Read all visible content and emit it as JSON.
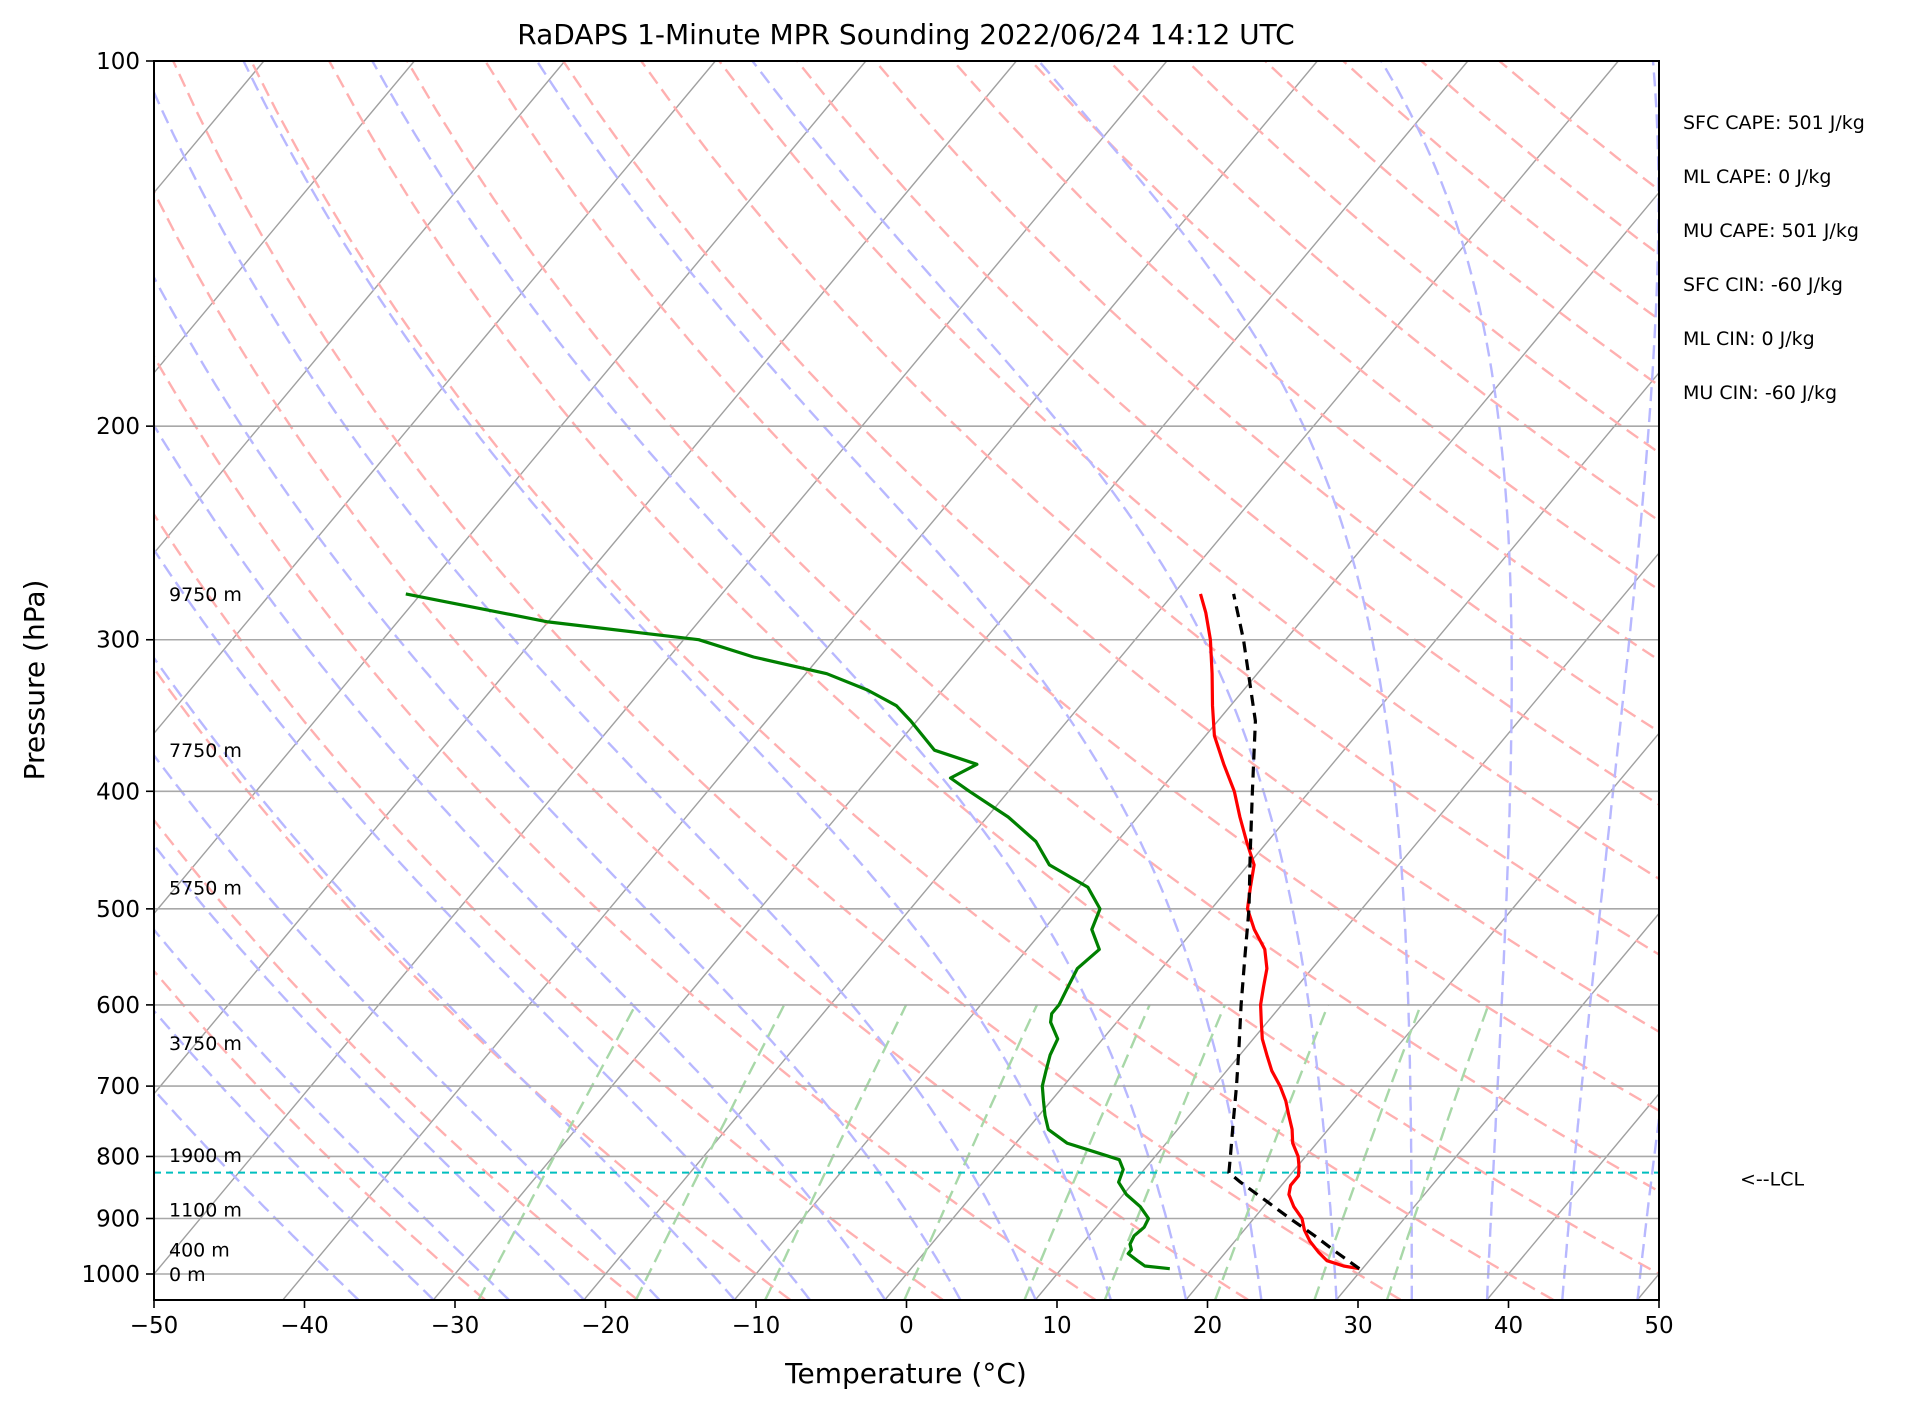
{
  "chart_data": {
    "type": "line",
    "title": "RaDAPS 1-Minute MPR Sounding 2022/06/24 14:12 UTC",
    "xlabel": "Temperature (°C)",
    "ylabel": "Pressure (hPa)",
    "xlim": [
      -50,
      50
    ],
    "ylim": [
      1050,
      100
    ],
    "y_scale": "log",
    "skew": "skew-T log-p",
    "xticks": [
      -50,
      -40,
      -30,
      -20,
      -10,
      0,
      10,
      20,
      30,
      40,
      50
    ],
    "xtick_labels": [
      "−50",
      "−40",
      "−30",
      "−20",
      "−10",
      "0",
      "10",
      "20",
      "30",
      "40",
      "50"
    ],
    "yticks": [
      100,
      200,
      300,
      400,
      500,
      600,
      700,
      800,
      900,
      1000
    ],
    "ytick_labels": [
      "100",
      "200",
      "300",
      "400",
      "500",
      "600",
      "700",
      "800",
      "900",
      "1000"
    ],
    "grid": true,
    "background_lines": {
      "isotherm_color": "#a0a0a0",
      "dry_adiabat_color": "#ffb0b0",
      "moist_adiabat_color": "#b8b8ff",
      "mixing_ratio_color": "#a8d8a8",
      "mixing_ratio_top_hpa": 600
    },
    "series": [
      {
        "key": "temperature",
        "color": "#ff0000",
        "pressure": [
          990,
          985,
          975,
          960,
          940,
          920,
          900,
          880,
          860,
          845,
          830,
          815,
          800,
          780,
          760,
          740,
          720,
          700,
          680,
          660,
          640,
          620,
          600,
          580,
          560,
          540,
          520,
          500,
          480,
          460,
          440,
          420,
          400,
          380,
          360,
          340,
          320,
          300,
          285,
          275
        ],
        "temperature": [
          29.8,
          28.6,
          27.2,
          26.2,
          25.0,
          24.0,
          23.2,
          22.0,
          21.0,
          20.6,
          20.6,
          20.1,
          19.5,
          18.4,
          17.6,
          16.6,
          15.6,
          14.4,
          13.0,
          11.8,
          10.6,
          9.6,
          8.6,
          7.8,
          7.0,
          5.8,
          4.0,
          2.4,
          1.4,
          0.4,
          -1.4,
          -3.2,
          -5.0,
          -7.2,
          -9.4,
          -11.2,
          -13.0,
          -15.0,
          -16.8,
          -18.2
        ]
      },
      {
        "key": "dewpoint",
        "color": "#008000",
        "pressure": [
          990,
          985,
          975,
          962,
          955,
          945,
          930,
          915,
          900,
          880,
          860,
          840,
          820,
          805,
          780,
          760,
          740,
          720,
          700,
          680,
          660,
          640,
          620,
          610,
          600,
          580,
          560,
          540,
          520,
          500,
          480,
          460,
          440,
          420,
          400,
          390,
          380,
          370,
          350,
          340,
          330,
          320,
          310,
          300,
          290,
          275
        ],
        "dewpoint": [
          17.2,
          15.4,
          14.6,
          13.6,
          13.6,
          13.2,
          13.0,
          13.2,
          13.0,
          11.8,
          10.2,
          9.0,
          8.6,
          7.8,
          3.4,
          1.4,
          0.4,
          -0.5,
          -1.4,
          -2.0,
          -2.6,
          -3.0,
          -4.4,
          -4.8,
          -4.8,
          -5.2,
          -5.6,
          -5.2,
          -6.8,
          -7.4,
          -9.4,
          -13.2,
          -15.4,
          -18.6,
          -22.6,
          -24.6,
          -23.6,
          -27.2,
          -30.4,
          -32.2,
          -35.0,
          -38.6,
          -44.4,
          -49.0,
          -60.0,
          -71.0
        ]
      },
      {
        "key": "parcel",
        "color": "#000000",
        "dashed": true,
        "pressure": [
          990,
          960,
          930,
          900,
          870,
          840,
          825,
          800,
          750,
          700,
          650,
          600,
          550,
          500,
          450,
          400,
          350,
          300,
          275
        ],
        "temperature": [
          29.8,
          27.4,
          25.0,
          22.4,
          19.8,
          17.1,
          15.8,
          15.0,
          13.3,
          11.5,
          9.5,
          7.3,
          5.0,
          2.5,
          -0.5,
          -3.8,
          -7.5,
          -12.8,
          -16.0
        ]
      }
    ],
    "lcl": {
      "pressure": 825,
      "label": "<--LCL",
      "color": "#00bfbf"
    },
    "height_labels": [
      {
        "text": "9750 m",
        "pressure": 275
      },
      {
        "text": "7750 m",
        "pressure": 370
      },
      {
        "text": "5750 m",
        "pressure": 480
      },
      {
        "text": "3750 m",
        "pressure": 645
      },
      {
        "text": "1900 m",
        "pressure": 798
      },
      {
        "text": "1100 m",
        "pressure": 885
      },
      {
        "text": "400 m",
        "pressure": 955
      },
      {
        "text": "0 m",
        "pressure": 1000
      }
    ],
    "stats": [
      "SFC CAPE: 501 J/kg",
      "ML CAPE: 0 J/kg",
      "MU CAPE: 501 J/kg",
      "SFC CIN: -60 J/kg",
      "ML CIN: 0 J/kg",
      "MU CIN: -60 J/kg"
    ]
  }
}
